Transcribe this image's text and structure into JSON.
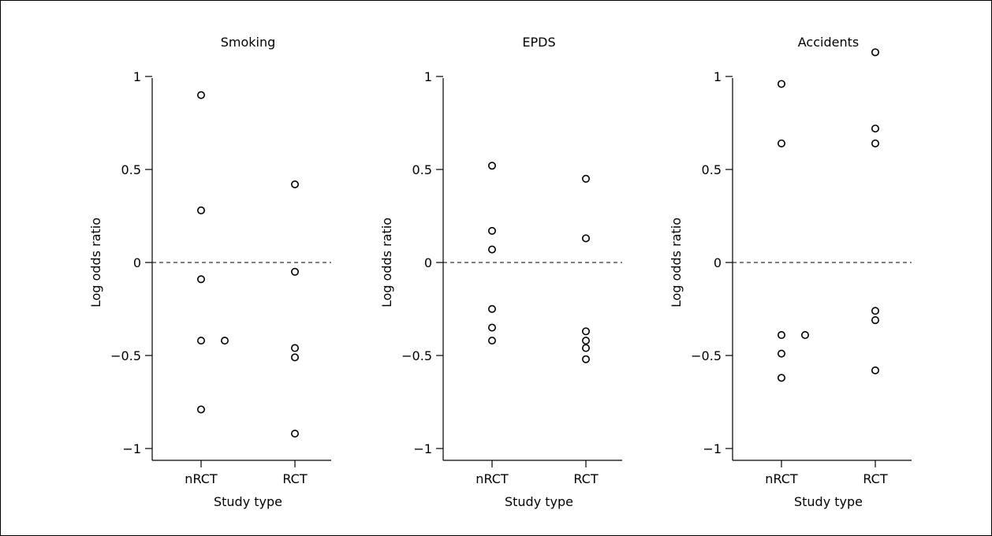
{
  "chart_data": [
    {
      "type": "scatter",
      "title": "Smoking",
      "xlabel": "Study type",
      "ylabel": "Log odds ratio",
      "categories": [
        "nRCT",
        "RCT"
      ],
      "ylim": [
        -1.05,
        1.05
      ],
      "yticks": [
        1,
        0.5,
        0,
        -0.5,
        -1
      ],
      "ytick_labels": [
        "1",
        "0.5",
        "0",
        "−0.5",
        "−1"
      ],
      "reference_line": 0,
      "points": [
        {
          "x": "nRCT",
          "y": 0.9
        },
        {
          "x": "nRCT",
          "y": 0.28
        },
        {
          "x": "nRCT",
          "y": -0.09
        },
        {
          "x": "nRCT",
          "y": -0.42
        },
        {
          "x": "nRCT",
          "y": -0.42,
          "jitter": 1
        },
        {
          "x": "nRCT",
          "y": -0.79
        },
        {
          "x": "RCT",
          "y": 0.42
        },
        {
          "x": "RCT",
          "y": -0.05
        },
        {
          "x": "RCT",
          "y": -0.46
        },
        {
          "x": "RCT",
          "y": -0.51
        },
        {
          "x": "RCT",
          "y": -0.92
        }
      ]
    },
    {
      "type": "scatter",
      "title": "EPDS",
      "xlabel": "Study type",
      "ylabel": "Log odds ratio",
      "categories": [
        "nRCT",
        "RCT"
      ],
      "ylim": [
        -1.05,
        1.05
      ],
      "yticks": [
        1,
        0.5,
        0,
        -0.5,
        -1
      ],
      "ytick_labels": [
        "1",
        "0.5",
        "0",
        "−0.5",
        "−1"
      ],
      "reference_line": 0,
      "points": [
        {
          "x": "nRCT",
          "y": 0.52
        },
        {
          "x": "nRCT",
          "y": 0.17
        },
        {
          "x": "nRCT",
          "y": 0.07
        },
        {
          "x": "nRCT",
          "y": -0.25
        },
        {
          "x": "nRCT",
          "y": -0.35
        },
        {
          "x": "nRCT",
          "y": -0.42
        },
        {
          "x": "RCT",
          "y": 0.45
        },
        {
          "x": "RCT",
          "y": 0.13
        },
        {
          "x": "RCT",
          "y": -0.37
        },
        {
          "x": "RCT",
          "y": -0.42
        },
        {
          "x": "RCT",
          "y": -0.46
        },
        {
          "x": "RCT",
          "y": -0.52
        }
      ]
    },
    {
      "type": "scatter",
      "title": "Accidents",
      "xlabel": "Study type",
      "ylabel": "Log odds ratio",
      "categories": [
        "nRCT",
        "RCT"
      ],
      "ylim": [
        -1.05,
        1.05
      ],
      "yticks": [
        1,
        0.5,
        0,
        -0.5,
        -1
      ],
      "ytick_labels": [
        "1",
        "0.5",
        "0",
        "−0.5",
        "−1"
      ],
      "reference_line": 0,
      "points": [
        {
          "x": "nRCT",
          "y": 0.96
        },
        {
          "x": "nRCT",
          "y": 0.64
        },
        {
          "x": "nRCT",
          "y": -0.39
        },
        {
          "x": "nRCT",
          "y": -0.39,
          "jitter": 1
        },
        {
          "x": "nRCT",
          "y": -0.49
        },
        {
          "x": "nRCT",
          "y": -0.62
        },
        {
          "x": "RCT",
          "y": 1.13
        },
        {
          "x": "RCT",
          "y": 0.72
        },
        {
          "x": "RCT",
          "y": 0.64
        },
        {
          "x": "RCT",
          "y": -0.26
        },
        {
          "x": "RCT",
          "y": -0.31
        },
        {
          "x": "RCT",
          "y": -0.58
        }
      ]
    }
  ]
}
